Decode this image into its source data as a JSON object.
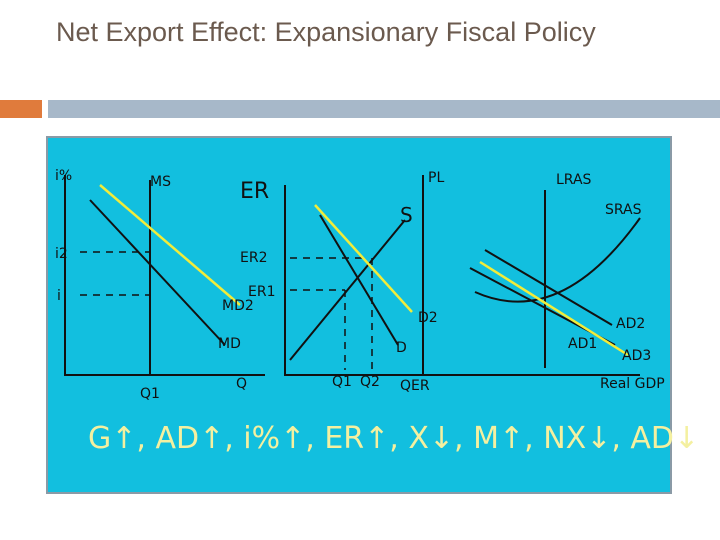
{
  "header": {
    "title": "Net Export Effect: Expansionary Fiscal Policy"
  },
  "diagram": {
    "money_market": {
      "y_axis": "i%",
      "supply": "MS",
      "rate_2": "i2",
      "rate_1": "i",
      "demand_2": "MD2",
      "demand_1": "MD",
      "qty_1": "Q1",
      "x_axis": "Q"
    },
    "fx_market": {
      "y_axis": "ER",
      "er_2": "ER2",
      "er_1": "ER1",
      "supply": "S",
      "demand_2": "D2",
      "demand_1": "D",
      "qty_1": "Q1",
      "qty_2": "Q2",
      "x_axis": "QER"
    },
    "ad_as": {
      "y_axis": "PL",
      "lras": "LRAS",
      "sras": "SRAS",
      "ad_2": "AD2",
      "ad_1": "AD1",
      "ad_3": "AD3",
      "x_axis": "Real GDP"
    },
    "chain": "G↑, AD↑, i%↑, ER↑, X↓, M↑, NX↓, AD↓"
  }
}
